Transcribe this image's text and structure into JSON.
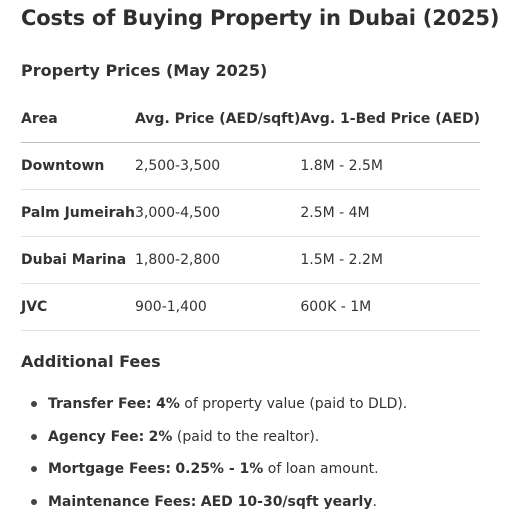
{
  "title": "Costs of Buying Property in Dubai (2025)",
  "prices_section": {
    "heading": "Property Prices (May 2025)",
    "columns": [
      "Area",
      "Avg. Price (AED/sqft)",
      "Avg. 1-Bed Price (AED)"
    ],
    "rows": [
      {
        "area": "Downtown",
        "price_sqft": "2,500-3,500",
        "one_bed": "1.8M - 2.5M"
      },
      {
        "area": "Palm Jumeirah",
        "price_sqft": "3,000-4,500",
        "one_bed": "2.5M - 4M"
      },
      {
        "area": "Dubai Marina",
        "price_sqft": "1,800-2,800",
        "one_bed": "1.5M - 2.2M"
      },
      {
        "area": "JVC",
        "price_sqft": "900-1,400",
        "one_bed": "600K - 1M"
      }
    ]
  },
  "fees_section": {
    "heading": "Additional Fees",
    "items": [
      {
        "label": "Transfer Fee:",
        "value": "4%",
        "rest": " of property value (paid to DLD)."
      },
      {
        "label": "Agency Fee:",
        "value": "2%",
        "rest": " (paid to the realtor)."
      },
      {
        "label": "Mortgage Fees:",
        "value": "0.25% - 1%",
        "rest": " of loan amount."
      },
      {
        "label": "Maintenance Fees:",
        "value": "AED 10-30/sqft yearly",
        "rest": "."
      }
    ]
  }
}
